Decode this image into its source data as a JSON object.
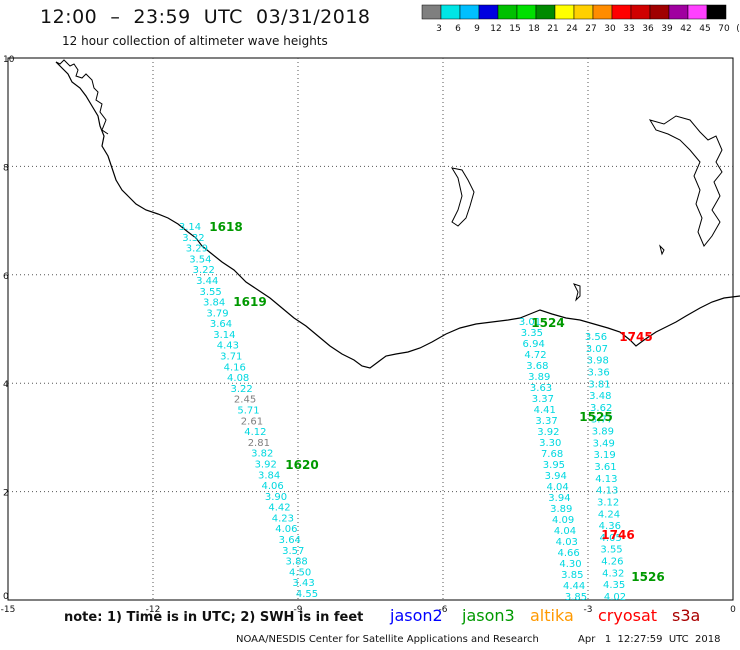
{
  "header": {
    "title": "12:00  –  23:59  UTC  03/31/2018",
    "subtitle": "12 hour collection of altimeter wave heights"
  },
  "colorbar": {
    "labels": [
      "3",
      "6",
      "9",
      "12",
      "15",
      "18",
      "21",
      "24",
      "27",
      "30",
      "33",
      "36",
      "39",
      "42",
      "45",
      "70",
      "(ft)"
    ],
    "colors": [
      "#7f7f7f",
      "#00e5e5",
      "#00bfff",
      "#0000e0",
      "#00c000",
      "#00e000",
      "#008a00",
      "#ffff00",
      "#ffd000",
      "#ff8c00",
      "#ff0000",
      "#d00000",
      "#a00000",
      "#a000a0",
      "#ff40ff",
      "#000000"
    ]
  },
  "footer": {
    "note": "note:  1) Time is in UTC;  2) SWH is in feet",
    "satellites": [
      {
        "name": "jason2",
        "color": "#0000ff"
      },
      {
        "name": "jason3",
        "color": "#009900"
      },
      {
        "name": "altika",
        "color": "#ff9900"
      },
      {
        "name": "cryosat",
        "color": "#ff0000"
      },
      {
        "name": "s3a",
        "color": "#aa0000"
      }
    ],
    "credit": "NOAA/NESDIS  Center  for  Satellite  Applications  and  Research",
    "timestamp": "Apr   1  12:27:59  UTC  2018"
  },
  "chart_data": {
    "type": "scatter",
    "xlim": [
      -15,
      0
    ],
    "ylim": [
      0,
      10
    ],
    "x_ticks": [
      -15,
      -12,
      -9,
      -6,
      -3,
      0
    ],
    "y_ticks": [
      0,
      2,
      4,
      6,
      8,
      10
    ],
    "grid": true,
    "swh_ft": {
      "pass_west": [
        "3.14",
        "3.32",
        "3.29",
        "3.54",
        "3.22",
        "3.44",
        "3.55",
        "3.84",
        "3.79",
        "3.64",
        "3.14",
        "4.43",
        "3.71",
        "4.16",
        "4.08",
        "3.22",
        "2.45",
        "5.71",
        "2.61",
        "4.12",
        "2.81",
        "3.82",
        "3.92",
        "3.84",
        "4.06",
        "3.90",
        "4.42",
        "4.23",
        "4.06",
        "3.64",
        "3.57",
        "3.88",
        "4.50",
        "3.43",
        "4.55"
      ],
      "pass_mid": [
        "3.01",
        "3.35",
        "6.94",
        "4.72",
        "3.68",
        "3.89",
        "3.63",
        "3.37",
        "4.41",
        "3.37",
        "3.92",
        "3.30",
        "7.68",
        "3.95",
        "3.94",
        "4.04",
        "3.94",
        "3.89",
        "4.09",
        "4.04",
        "4.03",
        "4.66",
        "4.30",
        "3.85",
        "4.44",
        "3.85"
      ],
      "pass_east": [
        "3.56",
        "3.07",
        "3.98",
        "3.36",
        "3.81",
        "3.48",
        "3.62",
        "3.77",
        "3.89",
        "3.49",
        "3.19",
        "3.61",
        "4.13",
        "4.13",
        "3.12",
        "4.24",
        "4.36",
        "4.05",
        "3.55",
        "4.26",
        "4.32",
        "4.35",
        "4.02"
      ]
    },
    "time_labels": [
      {
        "text": "1618",
        "satellite": "jason3"
      },
      {
        "text": "1619",
        "satellite": "jason3"
      },
      {
        "text": "1620",
        "satellite": "jason3"
      },
      {
        "text": "1524",
        "satellite": "jason3"
      },
      {
        "text": "1525",
        "satellite": "jason3"
      },
      {
        "text": "1526",
        "satellite": "jason3"
      },
      {
        "text": "1745",
        "satellite": "cryosat"
      },
      {
        "text": "1746",
        "satellite": "cryosat"
      }
    ]
  }
}
